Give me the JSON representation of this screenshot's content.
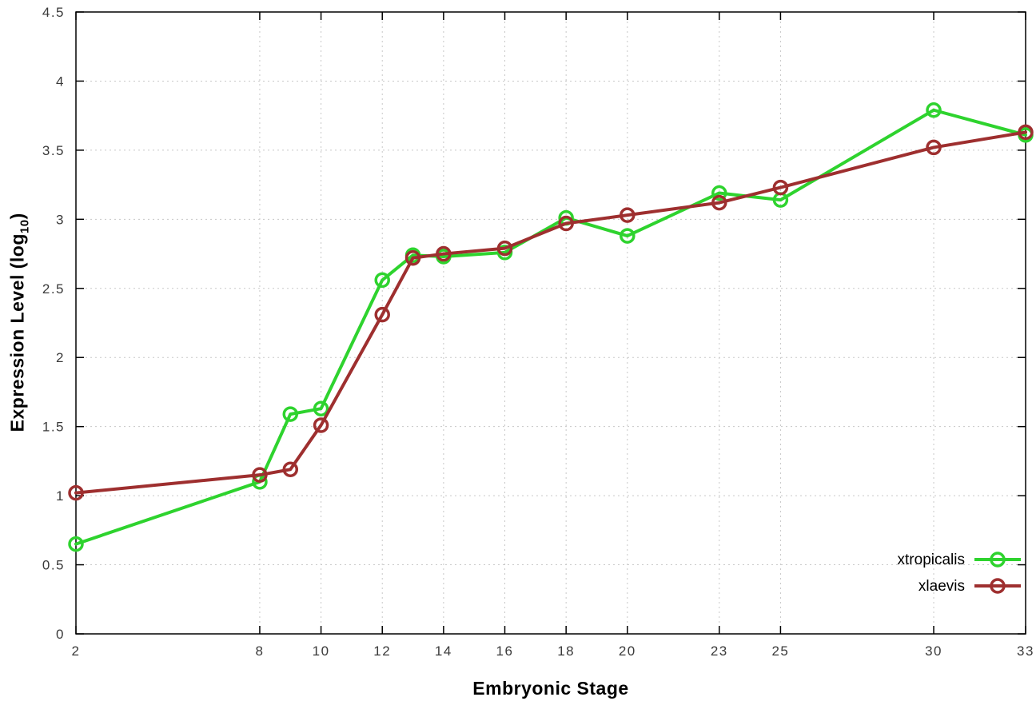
{
  "figure": {
    "background": "#ffffff",
    "xlabel": "Embryonic Stage",
    "ylabel_prefix": "Expression Level (log",
    "ylabel_sub": "10",
    "ylabel_suffix": ")"
  },
  "style": {
    "grid_color": "#c8c8c8",
    "border_color": "#000000",
    "tick_label_color": "#3a3a3a",
    "legend_text_color": "#000000"
  },
  "chart_data": {
    "type": "line",
    "title": "",
    "xlabel": "Embryonic Stage",
    "ylabel": "Expression Level (log10)",
    "xlim": [
      2,
      33
    ],
    "ylim": [
      0,
      4.5
    ],
    "xticks": [
      2,
      8,
      10,
      12,
      14,
      16,
      18,
      20,
      23,
      25,
      30,
      33
    ],
    "xtick_labels": [
      "2",
      "8",
      "10",
      "12",
      "14",
      "16",
      "18",
      "20",
      "23",
      "25",
      "30",
      "33"
    ],
    "yticks": [
      0,
      0.5,
      1,
      1.5,
      2,
      2.5,
      3,
      3.5,
      4,
      4.5
    ],
    "ytick_labels": [
      "0",
      "0.5",
      "1",
      "1.5",
      "2",
      "2.5",
      "3",
      "3.5",
      "4",
      "4.5"
    ],
    "grid": true,
    "legend_position": "bottom-right",
    "x": [
      2,
      8,
      9,
      10,
      12,
      13,
      14,
      16,
      18,
      20,
      23,
      25,
      30,
      33
    ],
    "series": [
      {
        "name": "xtropicalis",
        "color": "#2ed32e",
        "values": [
          0.65,
          1.1,
          1.59,
          1.63,
          2.56,
          2.74,
          2.73,
          2.76,
          3.01,
          2.88,
          3.19,
          3.14,
          3.79,
          3.61
        ]
      },
      {
        "name": "xlaevis",
        "color": "#9e2f2f",
        "values": [
          1.02,
          1.15,
          1.19,
          1.51,
          2.31,
          2.72,
          2.75,
          2.79,
          2.97,
          3.03,
          3.12,
          3.23,
          3.52,
          3.63
        ]
      }
    ]
  }
}
